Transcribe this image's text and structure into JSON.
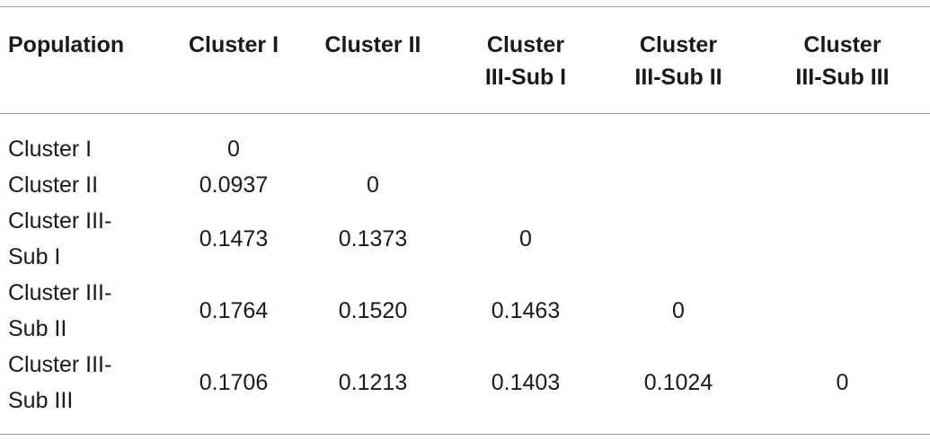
{
  "table": {
    "headers": [
      "Population",
      "Cluster I",
      "Cluster II",
      "Cluster III-Sub I",
      "Cluster III-Sub II",
      "Cluster III-Sub III"
    ],
    "header_lines": [
      [
        "Population"
      ],
      [
        "Cluster I"
      ],
      [
        "Cluster II"
      ],
      [
        "Cluster",
        "III-Sub I"
      ],
      [
        "Cluster",
        "III-Sub II"
      ],
      [
        "Cluster",
        "III-Sub III"
      ]
    ],
    "rows": [
      {
        "label": "Cluster I",
        "label_lines": [
          "Cluster I"
        ],
        "values": [
          "0",
          "",
          "",
          "",
          ""
        ]
      },
      {
        "label": "Cluster II",
        "label_lines": [
          "Cluster II"
        ],
        "values": [
          "0.0937",
          "0",
          "",
          "",
          ""
        ]
      },
      {
        "label": "Cluster III-Sub I",
        "label_lines": [
          "Cluster III-",
          "Sub I"
        ],
        "values": [
          "0.1473",
          "0.1373",
          "0",
          "",
          ""
        ]
      },
      {
        "label": "Cluster III-Sub II",
        "label_lines": [
          "Cluster III-",
          "Sub II"
        ],
        "values": [
          "0.1764",
          "0.1520",
          "0.1463",
          "0",
          ""
        ]
      },
      {
        "label": "Cluster III-Sub III",
        "label_lines": [
          "Cluster III-",
          "Sub III"
        ],
        "values": [
          "0.1706",
          "0.1213",
          "0.1403",
          "0.1024",
          "0"
        ]
      }
    ]
  }
}
